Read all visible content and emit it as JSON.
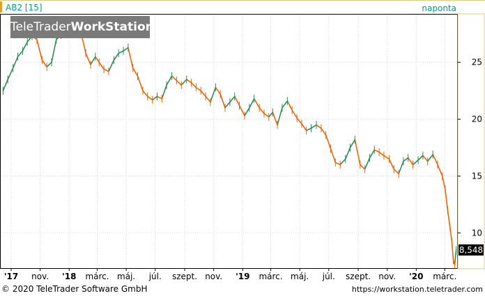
{
  "chart_data": {
    "type": "line",
    "symbol_label": "AB2 [15]",
    "interval_label": "naponta",
    "last_value_label": "8,548",
    "y_ticks": [
      10,
      15,
      20,
      25
    ],
    "ylim": [
      6.9,
      29.2
    ],
    "x_ticks": [
      "'17",
      "nov.",
      "'18",
      "márc.",
      "máj.",
      "júl.",
      "szept.",
      "nov.",
      "'19",
      "márc.",
      "máj.",
      "júl.",
      "szept.",
      "nov.",
      "'20",
      "márc."
    ],
    "x_tick_dates": [
      "2017-09-01",
      "2017-11-01",
      "2018-01-01",
      "2018-03-01",
      "2018-05-01",
      "2018-07-01",
      "2018-09-01",
      "2018-11-01",
      "2019-01-01",
      "2019-03-01",
      "2019-05-01",
      "2019-07-01",
      "2019-09-01",
      "2019-11-01",
      "2020-01-01",
      "2020-03-01"
    ],
    "grid": true,
    "series": [
      {
        "dates": [
          "2017-08-15",
          "2017-08-25",
          "2017-09-05",
          "2017-09-15",
          "2017-09-25",
          "2017-10-05",
          "2017-10-15",
          "2017-10-25",
          "2017-11-05",
          "2017-11-15",
          "2017-11-25",
          "2017-12-05",
          "2017-12-15",
          "2017-12-25",
          "2018-01-05",
          "2018-01-15",
          "2018-01-25",
          "2018-02-05",
          "2018-02-15",
          "2018-02-25",
          "2018-03-05",
          "2018-03-15",
          "2018-03-25",
          "2018-04-05",
          "2018-04-15",
          "2018-04-25",
          "2018-05-05",
          "2018-05-15",
          "2018-05-25",
          "2018-06-05",
          "2018-06-15",
          "2018-06-25",
          "2018-07-05",
          "2018-07-15",
          "2018-07-25",
          "2018-08-05",
          "2018-08-15",
          "2018-08-25",
          "2018-09-05",
          "2018-09-15",
          "2018-09-25",
          "2018-10-05",
          "2018-10-15",
          "2018-10-25",
          "2018-11-05",
          "2018-11-15",
          "2018-11-25",
          "2018-12-05",
          "2018-12-15",
          "2018-12-25",
          "2019-01-05",
          "2019-01-15",
          "2019-01-25",
          "2019-02-05",
          "2019-02-15",
          "2019-02-25",
          "2019-03-05",
          "2019-03-15",
          "2019-03-25",
          "2019-04-05",
          "2019-04-15",
          "2019-04-25",
          "2019-05-05",
          "2019-05-15",
          "2019-05-25",
          "2019-06-05",
          "2019-06-15",
          "2019-06-25",
          "2019-07-05",
          "2019-07-15",
          "2019-07-25",
          "2019-08-05",
          "2019-08-15",
          "2019-08-25",
          "2019-09-05",
          "2019-09-15",
          "2019-09-25",
          "2019-10-05",
          "2019-10-15",
          "2019-10-25",
          "2019-11-05",
          "2019-11-15",
          "2019-11-25",
          "2019-12-05",
          "2019-12-15",
          "2019-12-25",
          "2020-01-05",
          "2020-01-15",
          "2020-01-25",
          "2020-02-05",
          "2020-02-15",
          "2020-02-25",
          "2020-03-02",
          "2020-03-07",
          "2020-03-12",
          "2020-03-16",
          "2020-03-19",
          "2020-03-22",
          "2020-03-25"
        ],
        "values": [
          22.5,
          23.5,
          24.5,
          25.5,
          26.0,
          26.8,
          27.3,
          27.0,
          25.2,
          24.6,
          25.0,
          27.0,
          27.4,
          27.7,
          28.6,
          28.4,
          27.8,
          25.8,
          24.8,
          25.5,
          25.0,
          24.4,
          24.2,
          25.2,
          25.8,
          26.0,
          26.3,
          24.5,
          23.8,
          22.5,
          22.0,
          21.7,
          22.0,
          21.8,
          23.0,
          23.8,
          23.4,
          23.0,
          23.5,
          23.2,
          22.8,
          22.5,
          22.0,
          21.5,
          22.8,
          22.2,
          21.0,
          21.5,
          22.0,
          21.2,
          20.3,
          21.0,
          21.8,
          21.0,
          20.5,
          20.2,
          20.6,
          19.5,
          21.0,
          21.6,
          20.8,
          20.1,
          19.6,
          19.0,
          19.2,
          19.5,
          19.2,
          18.6,
          17.4,
          16.2,
          16.0,
          16.5,
          17.5,
          18.2,
          16.0,
          15.6,
          16.6,
          17.3,
          17.1,
          16.8,
          16.5,
          15.6,
          15.2,
          16.3,
          16.6,
          16.0,
          16.4,
          16.8,
          16.3,
          16.9,
          16.0,
          15.0,
          13.8,
          12.0,
          10.5,
          9.2,
          7.6,
          7.2,
          8.5
        ]
      }
    ]
  },
  "watermark": {
    "part1": "TeleTrader",
    "part2": "WorkStation"
  },
  "footer": {
    "copyright": "© 2020 TeleTrader Software GmbH",
    "url": "https://workstation.teletrader.com"
  },
  "colors": {
    "up": "#2e8b57",
    "down": "#e8640c",
    "label": "#009c7a",
    "panel_border": "#d9c98b",
    "grid": "#d8d8d8"
  }
}
